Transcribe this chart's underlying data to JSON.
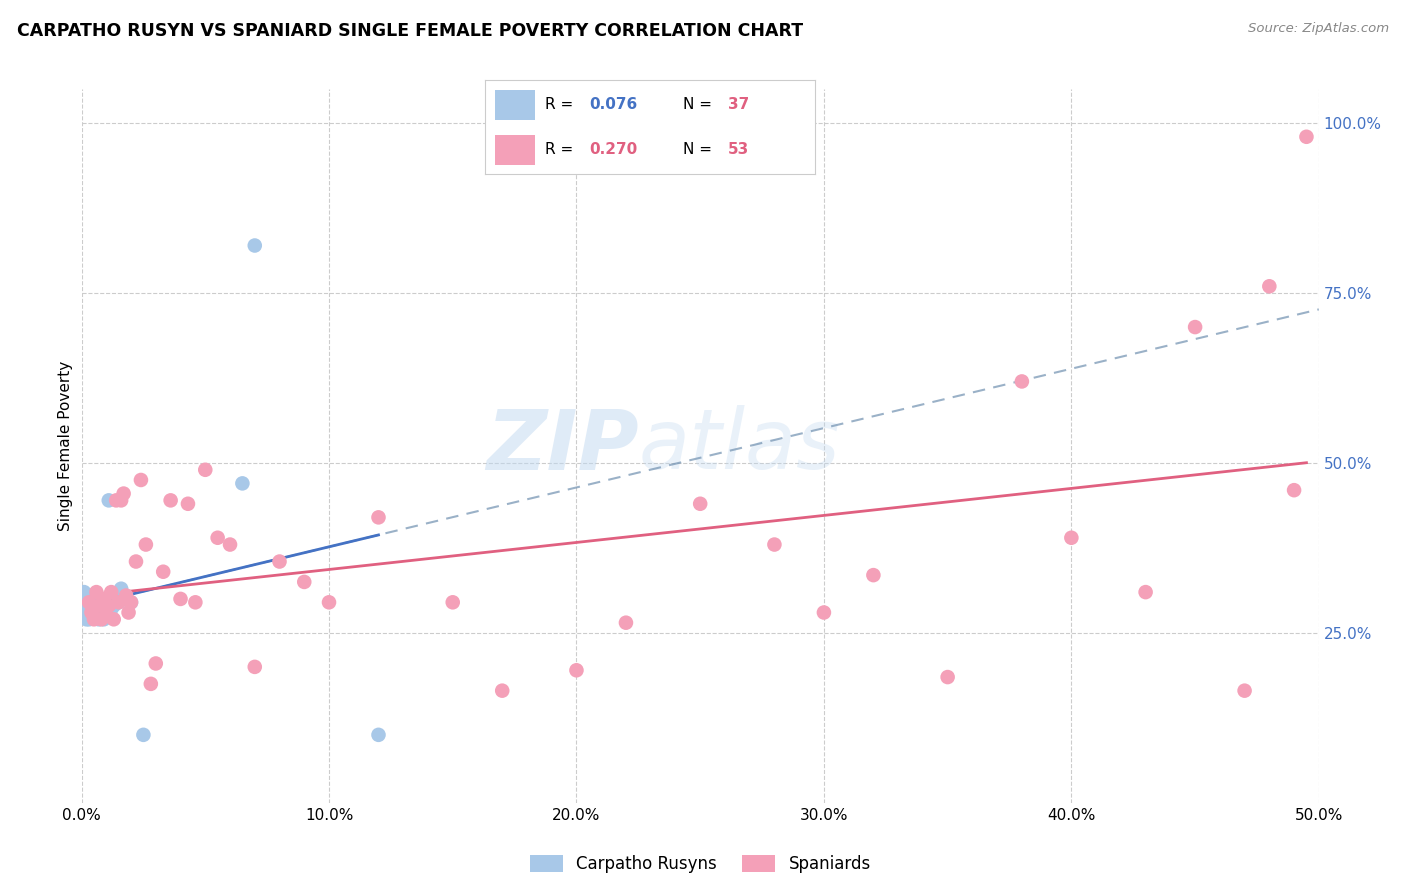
{
  "title": "CARPATHO RUSYN VS SPANIARD SINGLE FEMALE POVERTY CORRELATION CHART",
  "source": "Source: ZipAtlas.com",
  "ylabel": "Single Female Poverty",
  "legend_label1": "Carpatho Rusyns",
  "legend_label2": "Spaniards",
  "R1": "0.076",
  "N1": "37",
  "R2": "0.270",
  "N2": "53",
  "color_rusyn": "#a8c8e8",
  "color_spaniard": "#f4a0b8",
  "color_rusyn_line": "#4472c4",
  "color_spaniard_line": "#e06080",
  "watermark_zip_color": "#c0d8f0",
  "watermark_atlas_color": "#c0d8f0",
  "xlim": [
    0.0,
    0.5
  ],
  "ylim": [
    0.0,
    1.05
  ],
  "xticks": [
    0.0,
    0.1,
    0.2,
    0.3,
    0.4,
    0.5
  ],
  "xticklabels": [
    "0.0%",
    "10.0%",
    "20.0%",
    "30.0%",
    "40.0%",
    "50.0%"
  ],
  "right_yticks": [
    0.25,
    0.5,
    0.75,
    1.0
  ],
  "right_yticklabels": [
    "25.0%",
    "50.0%",
    "75.0%",
    "100.0%"
  ],
  "grid_yticks": [
    0.25,
    0.5,
    0.75,
    1.0
  ],
  "grid_xticks": [
    0.0,
    0.1,
    0.2,
    0.3,
    0.4,
    0.5
  ],
  "rusyn_x": [
    0.0005,
    0.001,
    0.001,
    0.001,
    0.0015,
    0.002,
    0.002,
    0.002,
    0.002,
    0.003,
    0.003,
    0.003,
    0.003,
    0.004,
    0.004,
    0.005,
    0.005,
    0.005,
    0.006,
    0.006,
    0.007,
    0.007,
    0.008,
    0.009,
    0.009,
    0.01,
    0.01,
    0.011,
    0.012,
    0.013,
    0.015,
    0.016,
    0.02,
    0.025,
    0.065,
    0.07,
    0.12
  ],
  "rusyn_y": [
    0.295,
    0.285,
    0.295,
    0.31,
    0.28,
    0.27,
    0.285,
    0.295,
    0.305,
    0.27,
    0.28,
    0.295,
    0.305,
    0.28,
    0.3,
    0.275,
    0.285,
    0.295,
    0.275,
    0.285,
    0.27,
    0.285,
    0.275,
    0.27,
    0.285,
    0.275,
    0.29,
    0.445,
    0.285,
    0.29,
    0.295,
    0.315,
    0.295,
    0.1,
    0.47,
    0.82,
    0.1
  ],
  "spaniard_x": [
    0.003,
    0.004,
    0.005,
    0.006,
    0.007,
    0.008,
    0.009,
    0.01,
    0.011,
    0.012,
    0.013,
    0.014,
    0.015,
    0.016,
    0.017,
    0.018,
    0.019,
    0.02,
    0.022,
    0.024,
    0.026,
    0.028,
    0.03,
    0.033,
    0.036,
    0.04,
    0.043,
    0.046,
    0.05,
    0.055,
    0.06,
    0.07,
    0.08,
    0.09,
    0.1,
    0.12,
    0.15,
    0.17,
    0.2,
    0.22,
    0.25,
    0.28,
    0.3,
    0.32,
    0.35,
    0.38,
    0.4,
    0.43,
    0.45,
    0.47,
    0.48,
    0.49,
    0.495
  ],
  "spaniard_y": [
    0.295,
    0.28,
    0.27,
    0.31,
    0.29,
    0.27,
    0.3,
    0.275,
    0.29,
    0.31,
    0.27,
    0.445,
    0.295,
    0.445,
    0.455,
    0.305,
    0.28,
    0.295,
    0.355,
    0.475,
    0.38,
    0.175,
    0.205,
    0.34,
    0.445,
    0.3,
    0.44,
    0.295,
    0.49,
    0.39,
    0.38,
    0.2,
    0.355,
    0.325,
    0.295,
    0.42,
    0.295,
    0.165,
    0.195,
    0.265,
    0.44,
    0.38,
    0.28,
    0.335,
    0.185,
    0.62,
    0.39,
    0.31,
    0.7,
    0.165,
    0.76,
    0.46,
    0.98
  ]
}
